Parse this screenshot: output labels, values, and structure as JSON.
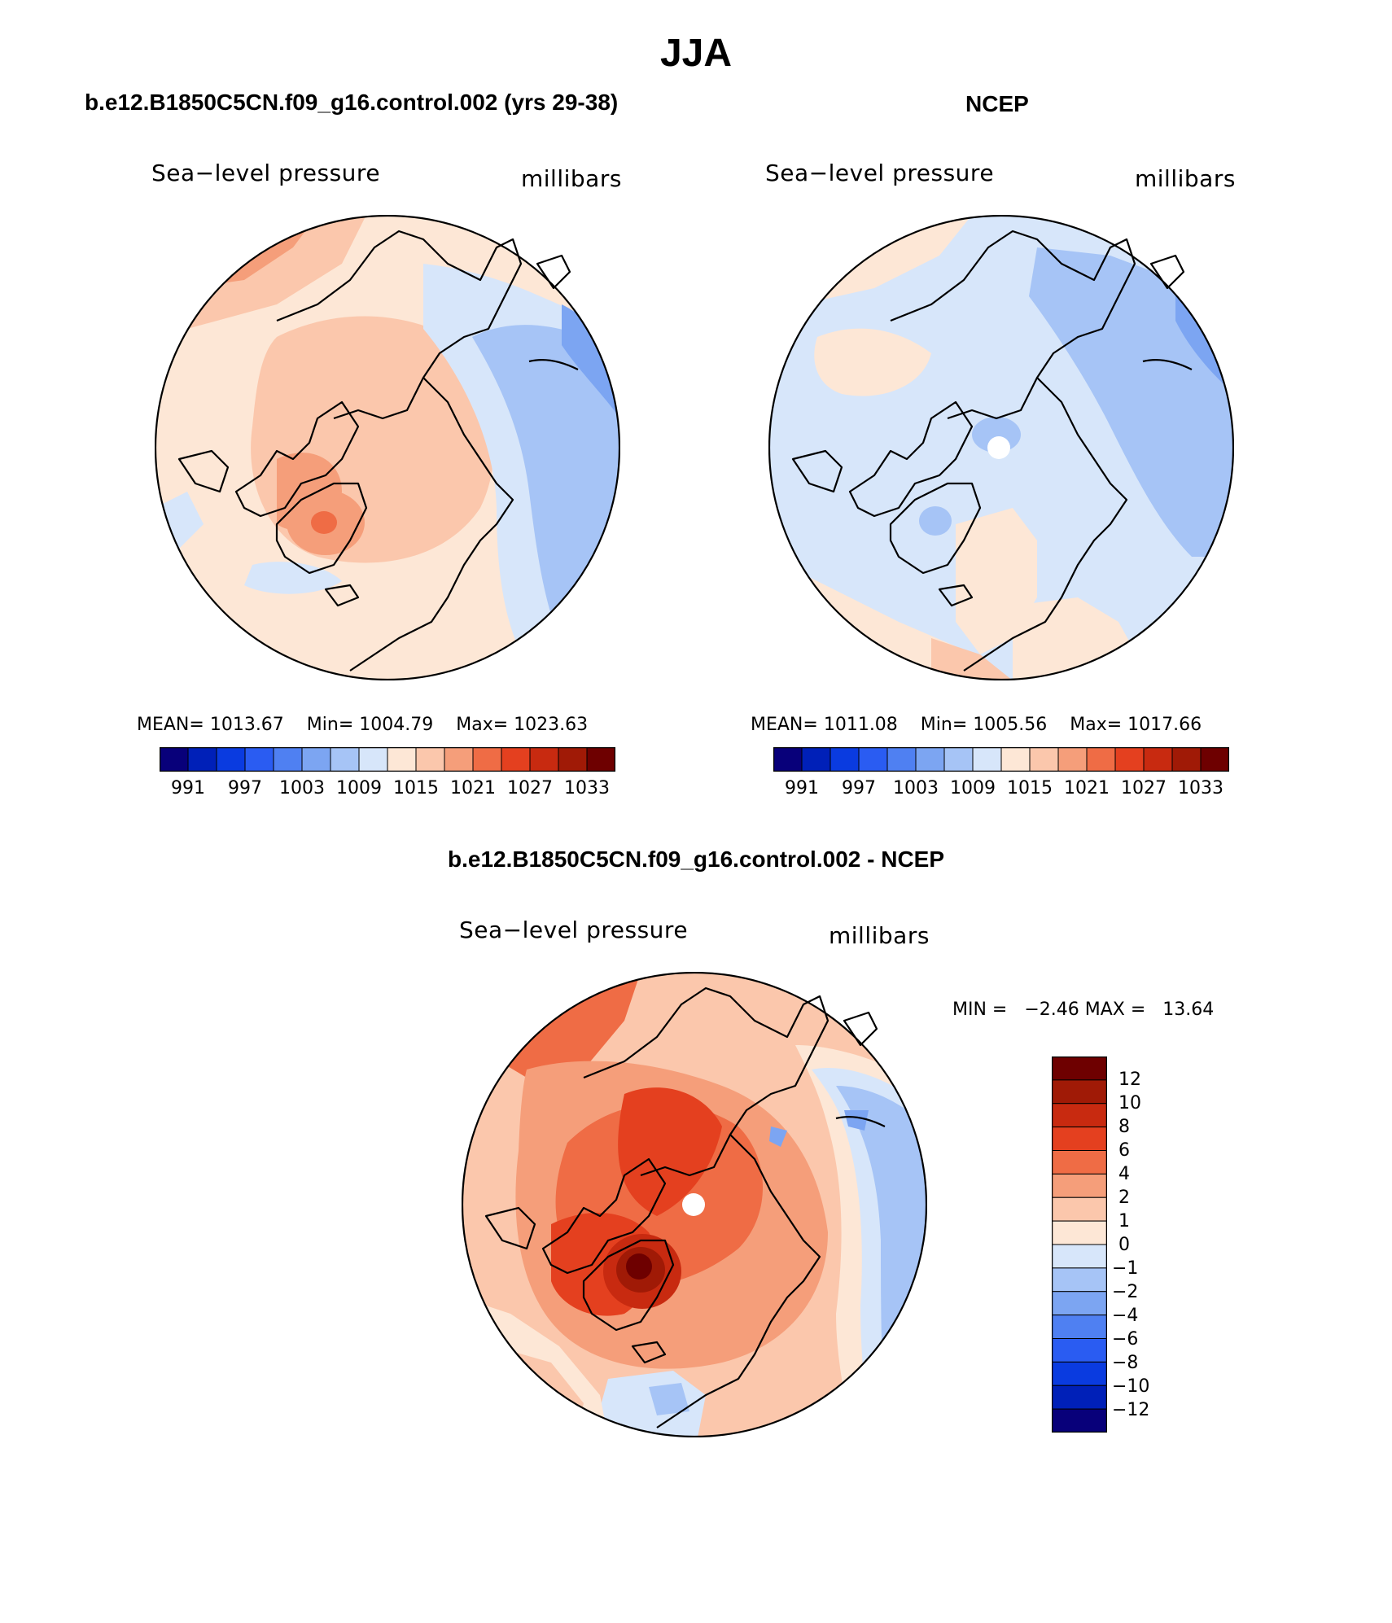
{
  "figure": {
    "title": "JJA"
  },
  "colors": {
    "abs_scale": [
      "#08007a",
      "#0020b8",
      "#0a3be0",
      "#2a5cf2",
      "#4f80f2",
      "#7ca5f2",
      "#a6c4f6",
      "#d7e6fa",
      "#fde7d6",
      "#fbc7ac",
      "#f59e7a",
      "#ef6c45",
      "#e4401f",
      "#c82a10",
      "#a01a06",
      "#6e0000"
    ],
    "diff_scale": [
      "#08007a",
      "#0020b8",
      "#0a3be0",
      "#2a5cf2",
      "#4f80f2",
      "#7ca5f2",
      "#a6c4f6",
      "#d7e6fa",
      "#fde7d6",
      "#fbc7ac",
      "#f59e7a",
      "#ef6c45",
      "#e4401f",
      "#c82a10",
      "#a01a06",
      "#6e0000"
    ]
  },
  "panels": {
    "model": {
      "case_title": "b.e12.B1850C5CN.f09_g16.control.002 (yrs 29-38)",
      "left_label": "Sea−level pressure",
      "right_label": "millibars",
      "stats": {
        "mean_label": "MEAN=",
        "mean": "1013.67",
        "min_label": "Min=",
        "min": "1004.79",
        "max_label": "Max=",
        "max": "1023.63"
      },
      "colorbar_ticks": [
        "991",
        "997",
        "1003",
        "1009",
        "1015",
        "1021",
        "1027",
        "1033"
      ]
    },
    "obs": {
      "case_title": "NCEP",
      "left_label": "Sea−level pressure",
      "right_label": "millibars",
      "stats": {
        "mean_label": "MEAN=",
        "mean": "1011.08",
        "min_label": "Min=",
        "min": "1005.56",
        "max_label": "Max=",
        "max": "1017.66"
      },
      "colorbar_ticks": [
        "991",
        "997",
        "1003",
        "1009",
        "1015",
        "1021",
        "1027",
        "1033"
      ]
    },
    "diff": {
      "case_title": "b.e12.B1850C5CN.f09_g16.control.002 - NCEP",
      "left_label": "Sea−level pressure",
      "right_label": "millibars",
      "minmax_text": "MIN =   −2.46 MAX =   13.64",
      "colorbar_ticks": [
        "12",
        "10",
        "8",
        "6",
        "4",
        "2",
        "1",
        "0",
        "−1",
        "−2",
        "−4",
        "−6",
        "−8",
        "−10",
        "−12"
      ]
    }
  }
}
